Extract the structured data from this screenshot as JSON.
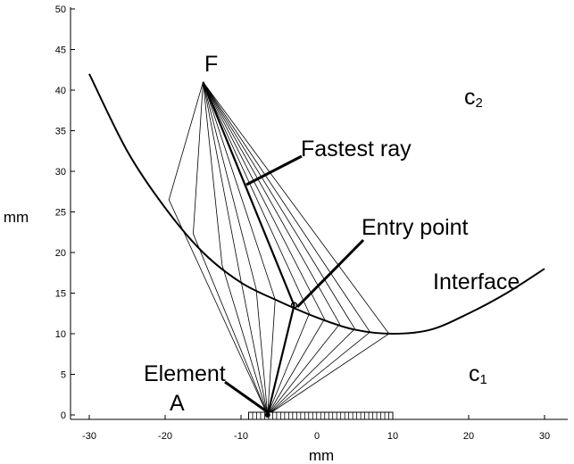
{
  "figure": {
    "xlabel": "mm",
    "ylabel": "mm",
    "xlim": [
      -31.5,
      31.5
    ],
    "ylim": [
      0,
      50
    ],
    "x_ticks": [
      -30,
      -20,
      -10,
      0,
      10,
      20,
      30
    ],
    "y_ticks": [
      0,
      5,
      10,
      15,
      20,
      25,
      30,
      35,
      40,
      45,
      50
    ]
  },
  "labels": {
    "focus": "F",
    "medium_upper": "c",
    "medium_upper_sub": "2",
    "medium_lower": "c",
    "medium_lower_sub": "1",
    "fastest_ray": "Fastest ray",
    "entry_point": "Entry point",
    "interface": "Interface",
    "element_line1": "Element",
    "element_line2": "A"
  },
  "geometry": {
    "focus": [
      -15,
      41
    ],
    "element": [
      -6.5,
      0
    ],
    "entry_point": [
      -3,
      13.5
    ],
    "interface_curve": [
      [
        -30,
        42
      ],
      [
        -25,
        32.5
      ],
      [
        -20,
        25.5
      ],
      [
        -15,
        20
      ],
      [
        -10,
        16.3
      ],
      [
        -5,
        14
      ],
      [
        0,
        12
      ],
      [
        5,
        10.5
      ],
      [
        10,
        10
      ],
      [
        15,
        10.5
      ],
      [
        20,
        12.5
      ],
      [
        25,
        15
      ],
      [
        30,
        18
      ]
    ],
    "fan_crossings": [
      [
        -19.5,
        26.5
      ],
      [
        -16.3,
        22.3
      ],
      [
        -12.5,
        18.5
      ],
      [
        -10,
        16.5
      ],
      [
        -8,
        15.5
      ],
      [
        -5.5,
        14.2
      ],
      [
        -3,
        13.5
      ],
      [
        -1,
        12.5
      ],
      [
        1,
        11.8
      ],
      [
        3,
        11.2
      ],
      [
        5,
        10.6
      ],
      [
        7,
        10.2
      ],
      [
        9.5,
        10
      ]
    ],
    "array_x_range": [
      -9,
      10
    ],
    "array_elements": 36
  },
  "colors": {
    "ink": "#000000",
    "background": "#ffffff"
  }
}
